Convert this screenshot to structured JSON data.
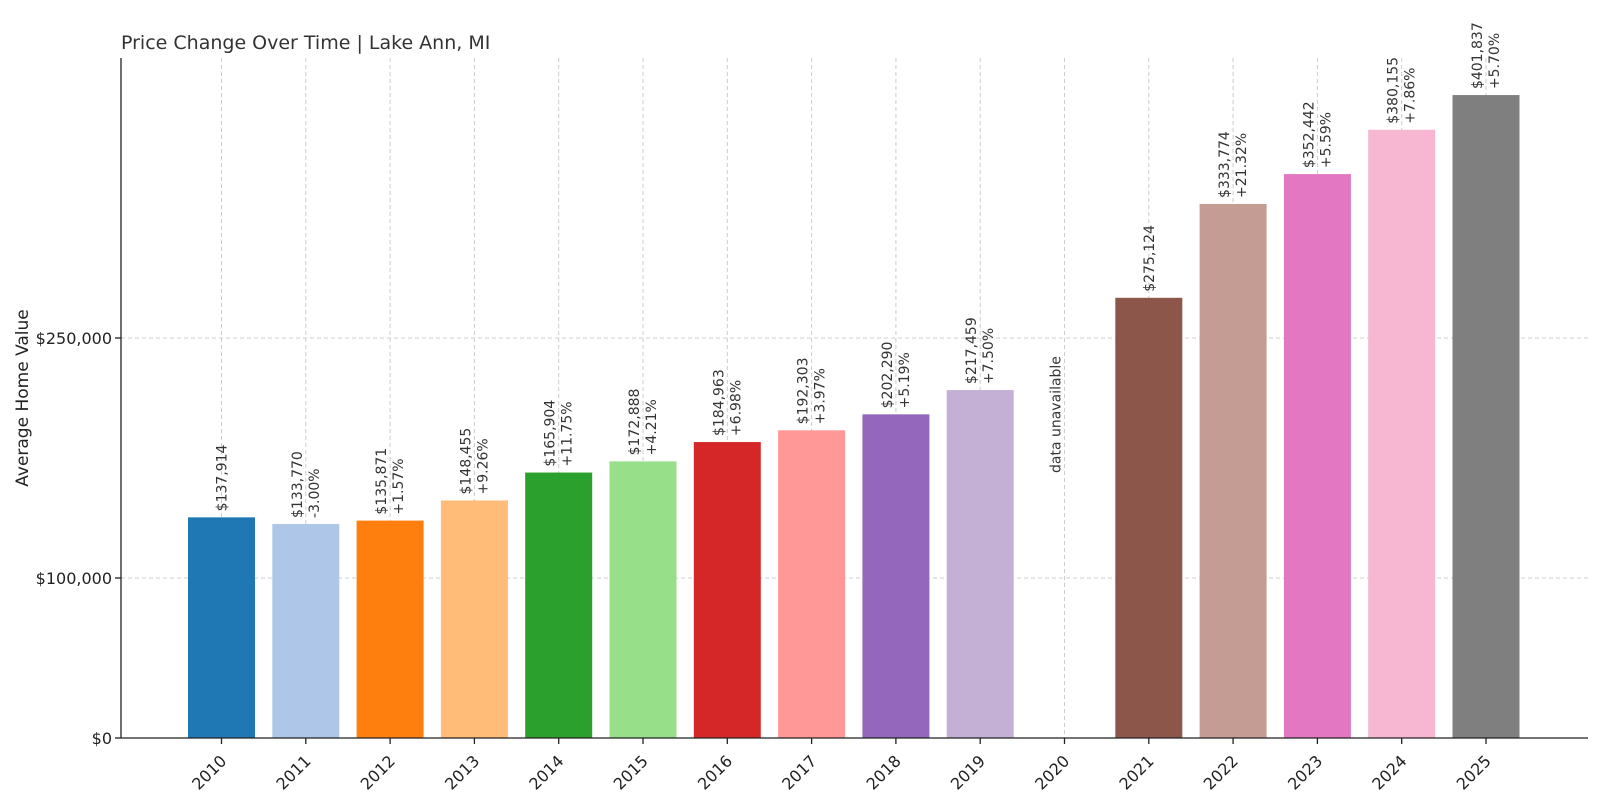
{
  "chart_data": {
    "type": "bar",
    "title": "Price Change Over Time | Lake Ann, MI",
    "xlabel": "",
    "ylabel": "Average Home Value",
    "ylim": [
      0,
      425000
    ],
    "yticks": [
      {
        "value": 0,
        "label": "$0"
      },
      {
        "value": 100000,
        "label": "$100,000"
      },
      {
        "value": 250000,
        "label": "$250,000"
      }
    ],
    "grid": true,
    "categories": [
      "2010",
      "2011",
      "2012",
      "2013",
      "2014",
      "2015",
      "2016",
      "2017",
      "2018",
      "2019",
      "2020",
      "2021",
      "2022",
      "2023",
      "2024",
      "2025"
    ],
    "values": [
      137914,
      133770,
      135871,
      148455,
      165904,
      172888,
      184963,
      192303,
      202290,
      217459,
      null,
      275124,
      333774,
      352442,
      380155,
      401837
    ],
    "value_labels": [
      "$137,914",
      "$133,770",
      "$135,871",
      "$148,455",
      "$165,904",
      "$172,888",
      "$184,963",
      "$192,303",
      "$202,290",
      "$217,459",
      "",
      "$275,124",
      "$333,774",
      "$352,442",
      "$380,155",
      "$401,837"
    ],
    "change_labels": [
      "",
      "-3.00%",
      "+1.57%",
      "+9.26%",
      "+11.75%",
      "+4.21%",
      "+6.98%",
      "+3.97%",
      "+5.19%",
      "+7.50%",
      "",
      "",
      "+21.32%",
      "+5.59%",
      "+7.86%",
      "+5.70%"
    ],
    "missing_label": "data unavailable",
    "colors": [
      "#1f77b4",
      "#aec7e8",
      "#ff7f0e",
      "#ffbb78",
      "#2ca02c",
      "#98df8a",
      "#d62728",
      "#ff9896",
      "#9467bd",
      "#c5b0d5",
      "#8c564b",
      "#c49c94",
      "#e377c2",
      "#f7b6d2",
      "#7f7f7f",
      "#c7c7c7"
    ]
  }
}
